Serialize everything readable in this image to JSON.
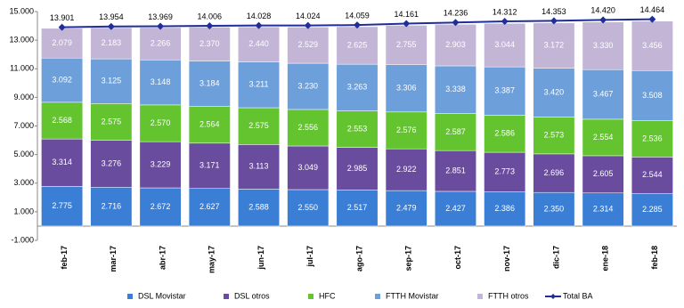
{
  "chart_data": {
    "type": "bar",
    "stacked": true,
    "grid": false,
    "legend": "bottom",
    "categories": [
      "feb-17",
      "mar-17",
      "abr-17",
      "may-17",
      "jun-17",
      "jul-17",
      "ago-17",
      "sep-17",
      "oct-17",
      "nov-17",
      "dic-17",
      "ene-18",
      "feb-18"
    ],
    "ylim": [
      -1000,
      15000
    ],
    "yticks": [
      {
        "value": -1000,
        "label": "-1.000"
      },
      {
        "value": 1000,
        "label": "1.000"
      },
      {
        "value": 3000,
        "label": "3.000"
      },
      {
        "value": 5000,
        "label": "5.000"
      },
      {
        "value": 7000,
        "label": "7.000"
      },
      {
        "value": 9000,
        "label": "9.000"
      },
      {
        "value": 11000,
        "label": "11.000"
      },
      {
        "value": 13000,
        "label": "13.000"
      },
      {
        "value": 15000,
        "label": "15.000"
      }
    ],
    "series": [
      {
        "name": "DSL Movistar",
        "color": "#3a7fd5",
        "values": [
          2775,
          2716,
          2672,
          2627,
          2588,
          2550,
          2517,
          2479,
          2427,
          2386,
          2350,
          2314,
          2285
        ],
        "value_labels": [
          "2.775",
          "2.716",
          "2.672",
          "2.627",
          "2.588",
          "2.550",
          "2.517",
          "2.479",
          "2.427",
          "2.386",
          "2.350",
          "2.314",
          "2.285"
        ]
      },
      {
        "name": "DSL otros",
        "color": "#6a4c9f",
        "values": [
          3314,
          3276,
          3229,
          3171,
          3113,
          3049,
          2985,
          2922,
          2851,
          2773,
          2696,
          2605,
          2544
        ],
        "value_labels": [
          "3.314",
          "3.276",
          "3.229",
          "3.171",
          "3.113",
          "3.049",
          "2.985",
          "2.922",
          "2.851",
          "2.773",
          "2.696",
          "2.605",
          "2.544"
        ]
      },
      {
        "name": "HFC",
        "color": "#63c42f",
        "values": [
          2568,
          2575,
          2570,
          2564,
          2575,
          2556,
          2553,
          2576,
          2587,
          2586,
          2573,
          2554,
          2536
        ],
        "value_labels": [
          "2.568",
          "2.575",
          "2.570",
          "2.564",
          "2.575",
          "2.556",
          "2.553",
          "2.576",
          "2.587",
          "2.586",
          "2.573",
          "2.554",
          "2.536"
        ]
      },
      {
        "name": "FTTH Movistar",
        "color": "#6d9fdb",
        "values": [
          3092,
          3125,
          3148,
          3184,
          3211,
          3230,
          3263,
          3306,
          3338,
          3387,
          3420,
          3467,
          3508
        ],
        "value_labels": [
          "3.092",
          "3.125",
          "3.148",
          "3.184",
          "3.211",
          "3.230",
          "3.263",
          "3.306",
          "3.338",
          "3.387",
          "3.420",
          "3.467",
          "3.508"
        ]
      },
      {
        "name": "FTTH otros",
        "color": "#c3b5d6",
        "values": [
          2079,
          2183,
          2266,
          2370,
          2440,
          2529,
          2625,
          2755,
          2903,
          3044,
          3172,
          3330,
          3456
        ],
        "value_labels": [
          "2.079",
          "2.183",
          "2.266",
          "2.370",
          "2.440",
          "2.529",
          "2.625",
          "2.755",
          "2.903",
          "3.044",
          "3.172",
          "3.330",
          "3.456"
        ]
      },
      {
        "name": "Total BA",
        "type": "line",
        "color": "#1f2e99",
        "values": [
          13901,
          13954,
          13969,
          14006,
          14028,
          14024,
          14059,
          14161,
          14236,
          14312,
          14353,
          14420,
          14464
        ],
        "value_labels": [
          "13.901",
          "13.954",
          "13.969",
          "14.006",
          "14.028",
          "14.024",
          "14.059",
          "14.161",
          "14.236",
          "14.312",
          "14.353",
          "14.420",
          "14.464"
        ]
      }
    ]
  }
}
